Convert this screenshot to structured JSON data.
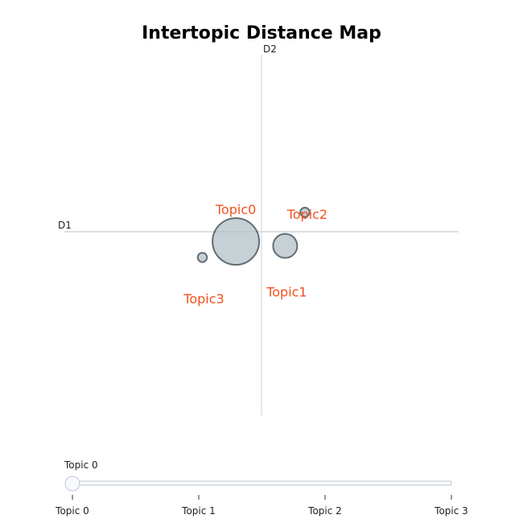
{
  "chart_data": {
    "type": "scatter",
    "title": "Intertopic Distance Map",
    "xlabel": "D1",
    "ylabel": "D2",
    "xlim": [
      -10,
      10
    ],
    "ylim": [
      -10,
      10
    ],
    "grid": false,
    "points": [
      {
        "label": "Topic0",
        "x": -1.3,
        "y": -0.55,
        "size": 100
      },
      {
        "label": "Topic1",
        "x": 1.2,
        "y": -0.8,
        "size": 25
      },
      {
        "label": "Topic2",
        "x": 2.2,
        "y": 1.1,
        "size": 3
      },
      {
        "label": "Topic3",
        "x": -3.0,
        "y": -1.45,
        "size": 3
      }
    ],
    "marker_fill": "#b0bec5",
    "marker_stroke": "#37474f",
    "label_color": "#f4511e",
    "axis_color": "#cfd8dc"
  },
  "slider": {
    "current_label": "Topic 0",
    "ticks": [
      "Topic 0",
      "Topic 1",
      "Topic 2",
      "Topic 3"
    ],
    "value_index": 0
  }
}
